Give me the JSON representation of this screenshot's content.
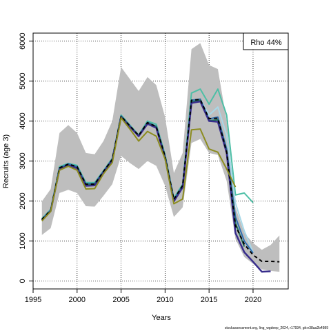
{
  "chart_data": {
    "type": "line",
    "title": "",
    "xlabel": "Years",
    "ylabel": "Recruits (age 3)",
    "xlim": [
      1995,
      2024
    ],
    "ylim": [
      -200,
      6200
    ],
    "x_ticks": [
      1995,
      2000,
      2005,
      2010,
      2015,
      2020
    ],
    "y_ticks": [
      0,
      1000,
      2000,
      3000,
      4000,
      5000,
      6000
    ],
    "grid": true,
    "legend": {
      "text": "Rho 44%",
      "placement": "top-right"
    },
    "footnote": "stockassessment.org, ling_wgdeep_2024, r17934, git:e38aa2b4989",
    "band": {
      "name": "",
      "color": "#bebebe",
      "x": [
        1996,
        1997,
        1998,
        1999,
        2000,
        2001,
        2002,
        2003,
        2004,
        2005,
        2006,
        2007,
        2008,
        2009,
        2010,
        2011,
        2012,
        2013,
        2014,
        2015,
        2016,
        2017,
        2018,
        2019,
        2020,
        2021,
        2022,
        2023
      ],
      "lower": [
        1150,
        1320,
        2200,
        2280,
        2200,
        1870,
        1860,
        2130,
        2420,
        3130,
        2950,
        2800,
        3000,
        2880,
        2380,
        1600,
        1840,
        3450,
        3550,
        3200,
        3150,
        2500,
        1050,
        600,
        430,
        290,
        250,
        230
      ],
      "upper": [
        1990,
        2300,
        3700,
        3900,
        3700,
        3200,
        3170,
        3500,
        4000,
        5350,
        5050,
        4750,
        5100,
        4900,
        4100,
        2700,
        3200,
        5800,
        5950,
        5400,
        5300,
        4000,
        1850,
        1200,
        950,
        780,
        900,
        1140
      ]
    },
    "series": [
      {
        "name": "",
        "color": "#4dbfa6",
        "width": 2,
        "dash": "",
        "x": [
          1996,
          1997,
          1998,
          1999,
          2000,
          2001,
          2002,
          2003,
          2004,
          2005,
          2006,
          2007,
          2008,
          2009,
          2010,
          2011,
          2012,
          2013,
          2014,
          2015,
          2016,
          2017,
          2018,
          2019,
          2020
        ],
        "values": [
          1560,
          1790,
          2860,
          2940,
          2890,
          2460,
          2460,
          2760,
          3070,
          4150,
          3900,
          3650,
          4000,
          3920,
          3160,
          2070,
          2420,
          4700,
          4800,
          4420,
          4800,
          4150,
          2150,
          2200,
          1960
        ]
      },
      {
        "name": "",
        "color": "#a8d8e8",
        "width": 2,
        "dash": "",
        "x": [
          2014,
          2015,
          2016,
          2017,
          2018,
          2019,
          2020
        ],
        "values": [
          4550,
          4150,
          4350,
          3650,
          1950,
          1250,
          720
        ]
      },
      {
        "name": "",
        "color": "#2f6fb0",
        "width": 2,
        "dash": "",
        "x": [
          1996,
          1997,
          1998,
          1999,
          2000,
          2001,
          2002,
          2003,
          2004,
          2005,
          2006,
          2007,
          2008,
          2009,
          2010,
          2011,
          2012,
          2013,
          2014,
          2015,
          2016,
          2017,
          2018,
          2019,
          2020
        ],
        "values": [
          1540,
          1770,
          2830,
          2930,
          2860,
          2430,
          2440,
          2740,
          3050,
          4130,
          3880,
          3640,
          3970,
          3870,
          3120,
          2040,
          2390,
          4520,
          4550,
          4050,
          4100,
          3300,
          1600,
          1000,
          700
        ]
      },
      {
        "name": "",
        "color": "#1f6e5a",
        "width": 2,
        "dash": "",
        "x": [
          1996,
          1997,
          1998,
          1999,
          2000,
          2001,
          2002,
          2003,
          2004,
          2005,
          2006,
          2007,
          2008,
          2009,
          2010,
          2011,
          2012,
          2013,
          2014,
          2015,
          2016,
          2017,
          2018,
          2019
        ],
        "values": [
          1530,
          1760,
          2800,
          2900,
          2830,
          2410,
          2420,
          2730,
          3040,
          4120,
          3870,
          3630,
          3960,
          3860,
          3110,
          2020,
          2370,
          4480,
          4520,
          4010,
          4030,
          3250,
          1450,
          860
        ]
      },
      {
        "name": "",
        "color": "#382d8c",
        "width": 2.5,
        "dash": "",
        "x": [
          1996,
          1997,
          1998,
          1999,
          2000,
          2001,
          2002,
          2003,
          2004,
          2005,
          2006,
          2007,
          2008,
          2009,
          2010,
          2011,
          2012,
          2013,
          2014,
          2015,
          2016,
          2017,
          2018,
          2019,
          2020,
          2021,
          2022
        ],
        "values": [
          1520,
          1750,
          2790,
          2890,
          2820,
          2380,
          2390,
          2720,
          3020,
          4100,
          3860,
          3620,
          3930,
          3830,
          3080,
          1990,
          2340,
          4450,
          4490,
          4000,
          3980,
          3200,
          1200,
          720,
          480,
          230,
          240
        ]
      },
      {
        "name": "",
        "color": "#000000",
        "width": 2,
        "dash": "5,4",
        "x": [
          1996,
          1997,
          1998,
          1999,
          2000,
          2001,
          2002,
          2003,
          2004,
          2005,
          2006,
          2007,
          2008,
          2009,
          2010,
          2011,
          2012,
          2013,
          2014,
          2015,
          2016,
          2017,
          2018,
          2019,
          2020,
          2021,
          2022,
          2023
        ],
        "values": [
          1540,
          1770,
          2830,
          2920,
          2860,
          2420,
          2420,
          2740,
          3040,
          4120,
          3880,
          3640,
          3960,
          3860,
          3120,
          2040,
          2390,
          4520,
          4540,
          4060,
          4070,
          3220,
          1380,
          920,
          650,
          490,
          490,
          480
        ]
      },
      {
        "name": "",
        "color": "#8c8c1f",
        "width": 2,
        "dash": "",
        "x": [
          1996,
          1997,
          1998,
          1999,
          2000,
          2001,
          2002,
          2003,
          2004,
          2005,
          2006,
          2007,
          2008,
          2009,
          2010,
          2011,
          2012,
          2013,
          2014,
          2015,
          2016,
          2017,
          2018
        ],
        "values": [
          1500,
          1740,
          2770,
          2870,
          2770,
          2300,
          2310,
          2680,
          2960,
          4080,
          3800,
          3500,
          3740,
          3620,
          3050,
          1930,
          2050,
          3780,
          3800,
          3300,
          3220,
          2800,
          2350
        ]
      }
    ]
  }
}
